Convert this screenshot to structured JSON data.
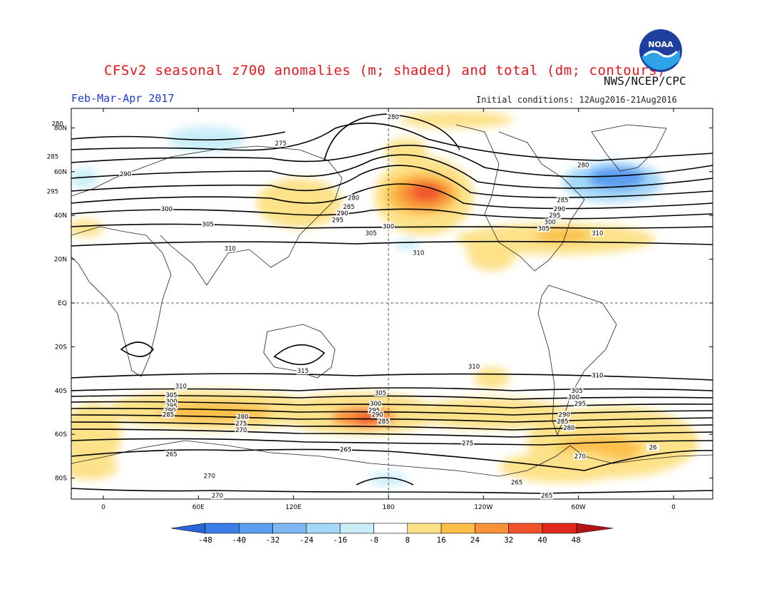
{
  "header": {
    "title": "CFSv2 seasonal z700 anomalies (m; shaded) and total (dm; contours)",
    "agency": "NWS/NCEP/CPC",
    "period": "Feb-Mar-Apr 2017",
    "initial_conditions": "Initial conditions: 12Aug2016-21Aug2016",
    "logo_text": "NOAA"
  },
  "map": {
    "lat_labels": [
      "80N",
      "60N",
      "40N",
      "20N",
      "EQ",
      "20S",
      "40S",
      "60S",
      "80S"
    ],
    "lon_labels": [
      "0",
      "60E",
      "120E",
      "180",
      "120W",
      "60W",
      "0"
    ]
  },
  "contour_labels": [
    {
      "text": "280",
      "lon": -29,
      "lat": 82
    },
    {
      "text": "285",
      "lon": -32,
      "lat": 67
    },
    {
      "text": "290",
      "lon": 14,
      "lat": 59
    },
    {
      "text": "295",
      "lon": -32,
      "lat": 51
    },
    {
      "text": "300",
      "lon": 40,
      "lat": 43
    },
    {
      "text": "305",
      "lon": 66,
      "lat": 36
    },
    {
      "text": "310",
      "lon": 80,
      "lat": 25
    },
    {
      "text": "275",
      "lon": 112,
      "lat": 73
    },
    {
      "text": "280",
      "lon": 183,
      "lat": 85
    },
    {
      "text": "280",
      "lon": 158,
      "lat": 48
    },
    {
      "text": "285",
      "lon": 155,
      "lat": 44
    },
    {
      "text": "290",
      "lon": 151,
      "lat": 41
    },
    {
      "text": "295",
      "lon": 148,
      "lat": 38
    },
    {
      "text": "300",
      "lon": 180,
      "lat": 35
    },
    {
      "text": "305",
      "lon": 169,
      "lat": 32
    },
    {
      "text": "310",
      "lon": 199,
      "lat": 23
    },
    {
      "text": "280",
      "lon": 303,
      "lat": 63
    },
    {
      "text": "285",
      "lon": 290,
      "lat": 47
    },
    {
      "text": "290",
      "lon": 288,
      "lat": 43
    },
    {
      "text": "295",
      "lon": 285,
      "lat": 40
    },
    {
      "text": "300",
      "lon": 282,
      "lat": 37
    },
    {
      "text": "305",
      "lon": 278,
      "lat": 34
    },
    {
      "text": "310",
      "lon": 312,
      "lat": 32
    },
    {
      "text": "310",
      "lon": 234,
      "lat": -29
    },
    {
      "text": "315",
      "lon": 126,
      "lat": -31
    },
    {
      "text": "310",
      "lon": 312,
      "lat": -33
    },
    {
      "text": "310",
      "lon": 49,
      "lat": -38
    },
    {
      "text": "305",
      "lon": 43,
      "lat": -42
    },
    {
      "text": "300",
      "lon": 43,
      "lat": -45
    },
    {
      "text": "295",
      "lon": 43,
      "lat": -47
    },
    {
      "text": "290",
      "lon": 42,
      "lat": -49
    },
    {
      "text": "285",
      "lon": 41,
      "lat": -51
    },
    {
      "text": "280",
      "lon": 88,
      "lat": -52
    },
    {
      "text": "275",
      "lon": 87,
      "lat": -55
    },
    {
      "text": "270",
      "lon": 87,
      "lat": -58
    },
    {
      "text": "305",
      "lon": 175,
      "lat": -41
    },
    {
      "text": "300",
      "lon": 172,
      "lat": -46
    },
    {
      "text": "295",
      "lon": 171,
      "lat": -49
    },
    {
      "text": "290",
      "lon": 173,
      "lat": -51
    },
    {
      "text": "285",
      "lon": 177,
      "lat": -54
    },
    {
      "text": "305",
      "lon": 299,
      "lat": -40
    },
    {
      "text": "300",
      "lon": 297,
      "lat": -43
    },
    {
      "text": "295",
      "lon": 301,
      "lat": -46
    },
    {
      "text": "290",
      "lon": 291,
      "lat": -51
    },
    {
      "text": "285",
      "lon": 290,
      "lat": -54
    },
    {
      "text": "280",
      "lon": 294,
      "lat": -57
    },
    {
      "text": "275",
      "lon": 230,
      "lat": -64
    },
    {
      "text": "270",
      "lon": 301,
      "lat": -70
    },
    {
      "text": "265",
      "lon": 43,
      "lat": -69
    },
    {
      "text": "265",
      "lon": 153,
      "lat": -67
    },
    {
      "text": "270",
      "lon": 67,
      "lat": -79
    },
    {
      "text": "270",
      "lon": 72,
      "lat": -88
    },
    {
      "text": "265",
      "lon": 261,
      "lat": -82
    },
    {
      "text": "265",
      "lon": 280,
      "lat": -88
    },
    {
      "text": "26",
      "lon": 347,
      "lat": -66
    }
  ],
  "colorbar": {
    "labels": [
      "-48",
      "-40",
      "-32",
      "-24",
      "-16",
      "-8",
      "8",
      "16",
      "24",
      "32",
      "40",
      "48"
    ],
    "colors": [
      "#2962d9",
      "#3a7fe8",
      "#5a9cf0",
      "#7db8f5",
      "#a4d8f7",
      "#c9eef8",
      "#ffffff",
      "#fde28a",
      "#fcc04a",
      "#f8923a",
      "#f2522a",
      "#e0281f",
      "#b3141a"
    ]
  }
}
